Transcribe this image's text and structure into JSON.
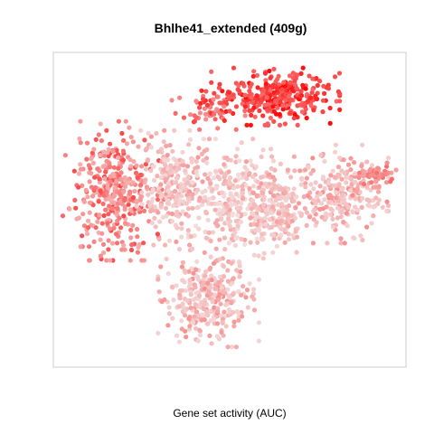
{
  "chart_data": {
    "type": "scatter",
    "title": "Bhlhe41_extended (409g)",
    "xlabel": "Gene set activity (AUC)",
    "ylabel": "",
    "xlim": [
      0,
      100
    ],
    "ylim": [
      0,
      100
    ],
    "grid": false,
    "legend": "none",
    "axes_ticks": false,
    "color_scale": {
      "low": "#f2e8e8",
      "high": "#ff0000"
    },
    "clusters": [
      {
        "name": "top-right",
        "cx": 63,
        "cy": 86,
        "rx": 14,
        "ry": 7,
        "n": 320,
        "activity": [
          0.55,
          1.0
        ]
      },
      {
        "name": "top-left-upper",
        "cx": 44,
        "cy": 82,
        "rx": 8,
        "ry": 5,
        "n": 60,
        "activity": [
          0.4,
          0.9
        ]
      },
      {
        "name": "left",
        "cx": 17,
        "cy": 56,
        "rx": 11,
        "ry": 17,
        "n": 380,
        "activity": [
          0.25,
          0.7
        ]
      },
      {
        "name": "center-left",
        "cx": 34,
        "cy": 57,
        "rx": 8,
        "ry": 14,
        "n": 220,
        "activity": [
          0.08,
          0.35
        ]
      },
      {
        "name": "center",
        "cx": 50,
        "cy": 53,
        "rx": 9,
        "ry": 15,
        "n": 260,
        "activity": [
          0.05,
          0.3
        ]
      },
      {
        "name": "center-right",
        "cx": 64,
        "cy": 50,
        "rx": 8,
        "ry": 13,
        "n": 240,
        "activity": [
          0.08,
          0.35
        ]
      },
      {
        "name": "right",
        "cx": 82,
        "cy": 55,
        "rx": 10,
        "ry": 12,
        "n": 230,
        "activity": [
          0.1,
          0.4
        ]
      },
      {
        "name": "right-tip",
        "cx": 92,
        "cy": 61,
        "rx": 4,
        "ry": 3,
        "n": 60,
        "activity": [
          0.3,
          0.55
        ]
      },
      {
        "name": "bottom",
        "cx": 44,
        "cy": 22,
        "rx": 11,
        "ry": 12,
        "n": 300,
        "activity": [
          0.08,
          0.4
        ]
      }
    ]
  }
}
